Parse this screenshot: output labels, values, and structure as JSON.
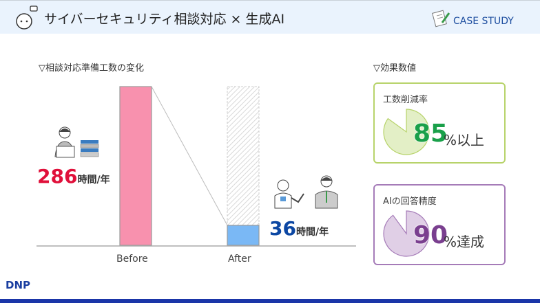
{
  "header": {
    "title": "サイバーセキュリティ相談対応 × 生成AI",
    "badge": "CASE STUDY"
  },
  "left_section": {
    "heading": "▽相談対応準備工数の変化"
  },
  "right_section": {
    "heading": "▽効果数値"
  },
  "chart_data": {
    "type": "bar",
    "categories": [
      "Before",
      "After"
    ],
    "values": [
      286,
      36
    ],
    "unit": "時間/年",
    "labels": [
      "286",
      "36"
    ],
    "colors": [
      "#f891ae",
      "#7ab8f5"
    ]
  },
  "cards": [
    {
      "label": "工数削減率",
      "value": "85",
      "unit": "%以上",
      "percent": 85,
      "color": "#b7d36a",
      "fill": "#e3efc6",
      "text_color": "#1aa04a"
    },
    {
      "label": "AIの回答精度",
      "value": "90",
      "unit": "%達成",
      "percent": 90,
      "color": "#a57bb8",
      "fill": "#e0cfe6",
      "text_color": "#7a3f8f"
    }
  ],
  "footer": {
    "logo": "DNP"
  }
}
